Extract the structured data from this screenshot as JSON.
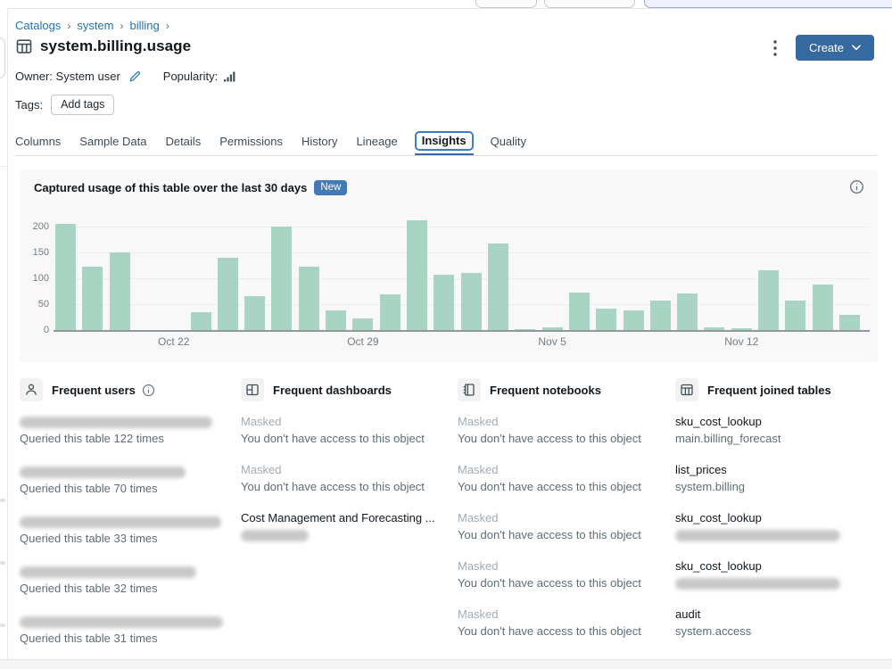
{
  "breadcrumb": {
    "items": [
      "Catalogs",
      "system",
      "billing"
    ],
    "separator": "›"
  },
  "header": {
    "title": "system.billing.usage",
    "create_label": "Create",
    "owner_label": "Owner:",
    "owner_value": "System user",
    "popularity_label": "Popularity:",
    "tags_label": "Tags:",
    "add_tags_label": "Add tags"
  },
  "tabs": {
    "items": [
      "Columns",
      "Sample Data",
      "Details",
      "Permissions",
      "History",
      "Lineage",
      "Insights",
      "Quality"
    ],
    "active": "Insights"
  },
  "usage_panel": {
    "title": "Captured usage of this table over the last 30 days",
    "badge": "New"
  },
  "chart_data": {
    "type": "bar",
    "title": "Captured usage of this table over the last 30 days",
    "x": [
      "Oct 18",
      "Oct 19",
      "Oct 20",
      "Oct 21",
      "Oct 22",
      "Oct 23",
      "Oct 24",
      "Oct 25",
      "Oct 26",
      "Oct 27",
      "Oct 28",
      "Oct 29",
      "Oct 30",
      "Oct 31",
      "Nov 1",
      "Nov 2",
      "Nov 3",
      "Nov 4",
      "Nov 5",
      "Nov 6",
      "Nov 7",
      "Nov 8",
      "Nov 9",
      "Nov 10",
      "Nov 11",
      "Nov 12",
      "Nov 13",
      "Nov 14",
      "Nov 15",
      "Nov 16"
    ],
    "values": [
      205,
      122,
      150,
      0,
      0,
      35,
      140,
      66,
      200,
      122,
      38,
      22,
      69,
      212,
      107,
      110,
      167,
      2,
      5,
      72,
      42,
      38,
      57,
      70,
      6,
      3,
      115,
      57,
      88,
      30
    ],
    "shown_xticks": [
      {
        "index": 4,
        "label": "Oct 22"
      },
      {
        "index": 11,
        "label": "Oct 29"
      },
      {
        "index": 18,
        "label": "Nov 5"
      },
      {
        "index": 25,
        "label": "Nov 12"
      }
    ],
    "yticks": [
      0,
      50,
      100,
      150,
      200
    ],
    "ylim": [
      0,
      220
    ],
    "xlabel": "",
    "ylabel": "",
    "grid": true,
    "legend": null,
    "bar_color": "#A9D3C3"
  },
  "sections": [
    {
      "id": "users",
      "icon": "person-icon",
      "title": "Frequent users",
      "info": true,
      "entries": [
        {
          "name_masked": true,
          "mask_width": 216,
          "subtitle": "Queried this table 122 times"
        },
        {
          "name_masked": true,
          "mask_width": 186,
          "subtitle": "Queried this table 70 times"
        },
        {
          "name_masked": true,
          "mask_width": 226,
          "subtitle": "Queried this table 33 times"
        },
        {
          "name_masked": true,
          "mask_width": 198,
          "subtitle": "Queried this table 32 times"
        },
        {
          "name_masked": true,
          "mask_width": 228,
          "subtitle": "Queried this table 31 times"
        }
      ]
    },
    {
      "id": "dashboards",
      "icon": "dashboard-icon",
      "title": "Frequent dashboards",
      "info": false,
      "entries": [
        {
          "name": "Masked",
          "muted": true,
          "subtitle": "You don't have access to this object"
        },
        {
          "name": "Masked",
          "muted": true,
          "subtitle": "You don't have access to this object"
        },
        {
          "name": "Cost Management and Forecasting ...",
          "link": true,
          "subtitle_masked": true,
          "mask_width": 76
        }
      ]
    },
    {
      "id": "notebooks",
      "icon": "notebook-icon",
      "title": "Frequent notebooks",
      "info": false,
      "entries": [
        {
          "name": "Masked",
          "muted": true,
          "subtitle": "You don't have access to this object"
        },
        {
          "name": "Masked",
          "muted": true,
          "subtitle": "You don't have access to this object"
        },
        {
          "name": "Masked",
          "muted": true,
          "subtitle": "You don't have access to this object"
        },
        {
          "name": "Masked",
          "muted": true,
          "subtitle": "You don't have access to this object"
        },
        {
          "name": "Masked",
          "muted": true,
          "subtitle": "You don't have access to this object"
        }
      ]
    },
    {
      "id": "joined-tables",
      "icon": "joined-table-icon",
      "title": "Frequent joined tables",
      "info": false,
      "entries": [
        {
          "name": "sku_cost_lookup",
          "link": true,
          "subtitle": "main.billing_forecast"
        },
        {
          "name": "list_prices",
          "link": true,
          "subtitle": "system.billing"
        },
        {
          "name": "sku_cost_lookup",
          "link": true,
          "subtitle_masked": true,
          "mask_width": 185
        },
        {
          "name": "sku_cost_lookup",
          "link": true,
          "subtitle_masked": true,
          "mask_width": 185
        },
        {
          "name": "audit",
          "link": true,
          "subtitle": "system.access"
        }
      ]
    }
  ],
  "colors": {
    "link_blue": "#2272B4",
    "button_blue": "#36699F",
    "badge_blue": "#4379B6",
    "bar_green": "#A9D3C3",
    "focus_ring": "#3D7EC2"
  }
}
